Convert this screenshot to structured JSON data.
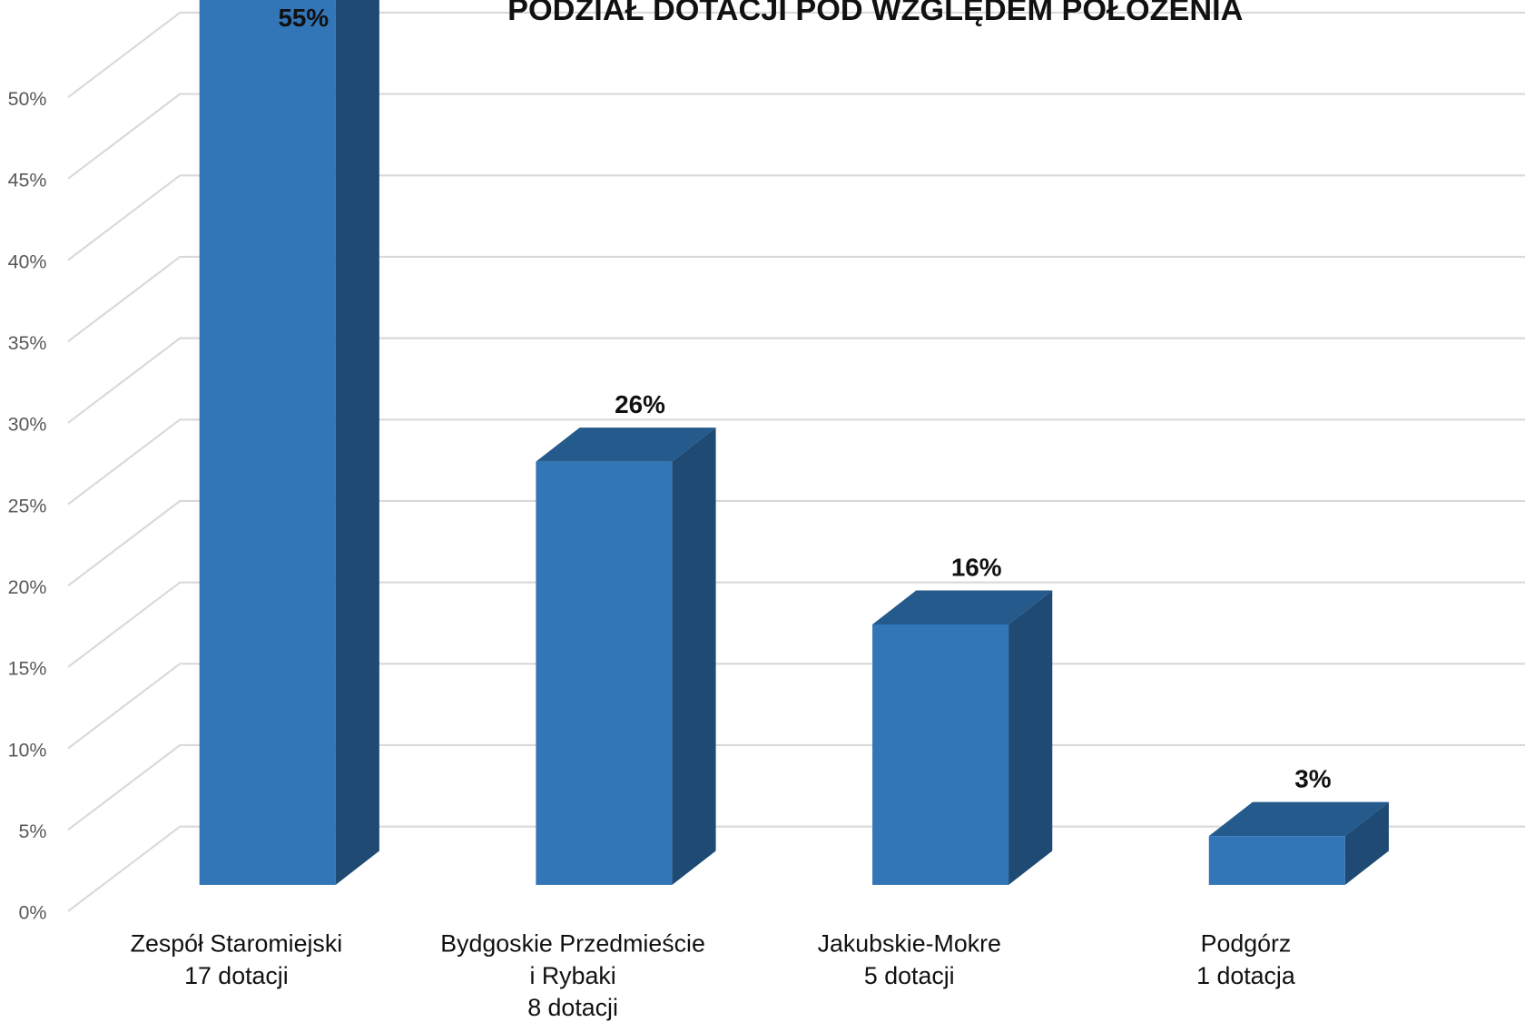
{
  "chart_data": {
    "type": "bar3d",
    "title": "PODZIAŁ DOTACJI POD WZGLĘDEM POŁOŻENIA",
    "categories": [
      [
        "Zespół Staromiejski",
        "17 dotacji"
      ],
      [
        "Bydgoskie Przedmieście",
        "i Rybaki",
        "8 dotacji"
      ],
      [
        "Jakubskie-Mokre",
        "5 dotacji"
      ],
      [
        "Podgórz",
        "1 dotacja"
      ]
    ],
    "values": [
      55,
      26,
      16,
      3
    ],
    "value_labels": [
      "55%",
      "26%",
      "16%",
      "3%"
    ],
    "color": "#3276b8",
    "ylim": [
      0,
      55
    ],
    "yticks": [
      {
        "value": 0,
        "label": "0%"
      },
      {
        "value": 5,
        "label": "5%"
      },
      {
        "value": 10,
        "label": "10%"
      },
      {
        "value": 15,
        "label": "15%"
      },
      {
        "value": 20,
        "label": "20%"
      },
      {
        "value": 25,
        "label": "25%"
      },
      {
        "value": 30,
        "label": "30%"
      },
      {
        "value": 35,
        "label": "35%"
      },
      {
        "value": 40,
        "label": "40%"
      },
      {
        "value": 45,
        "label": "45%"
      },
      {
        "value": 50,
        "label": "50%"
      }
    ],
    "grid": true
  }
}
